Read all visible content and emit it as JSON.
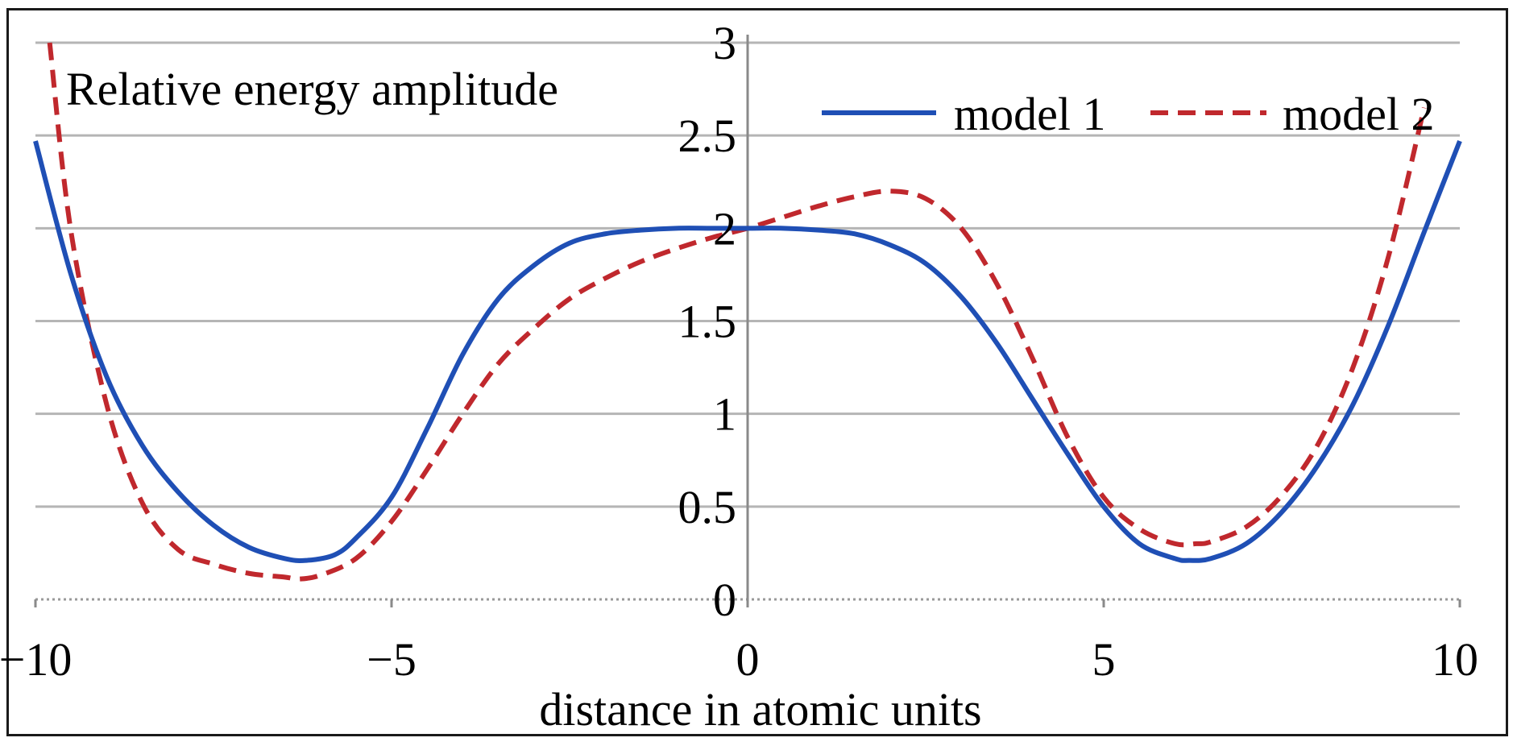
{
  "chart_data": {
    "type": "line",
    "title": "Relative energy amplitude",
    "xlabel": "distance in atomic units",
    "ylabel": "",
    "xlim": [
      -10,
      10
    ],
    "ylim": [
      0,
      3
    ],
    "x_ticks": [
      -10,
      -5,
      0,
      5,
      10
    ],
    "x_tick_labels": [
      "−10",
      "−5",
      "0",
      "5",
      "10"
    ],
    "y_ticks": [
      0,
      0.5,
      1,
      1.5,
      2,
      2.5,
      3
    ],
    "y_tick_labels": [
      "0",
      "0.5",
      "1",
      "1.5",
      "2",
      "2.5",
      "3"
    ],
    "grid": "horizontal",
    "legend_position": "top-right",
    "series": [
      {
        "name": "model 1",
        "color": "#1f4fb5",
        "style": "solid",
        "x": [
          -10,
          -9.5,
          -9,
          -8.5,
          -8,
          -7.5,
          -7,
          -6.5,
          -6.2,
          -5.8,
          -5.5,
          -5,
          -4.5,
          -4,
          -3.5,
          -3,
          -2.5,
          -2,
          -1.5,
          -1,
          -0.5,
          0,
          0.5,
          1,
          1.5,
          2,
          2.5,
          3,
          3.5,
          4,
          4.5,
          5,
          5.5,
          6,
          6.2,
          6.5,
          7,
          7.5,
          8,
          8.5,
          9,
          9.5,
          10
        ],
        "y": [
          2.47,
          1.75,
          1.2,
          0.83,
          0.58,
          0.4,
          0.28,
          0.22,
          0.21,
          0.24,
          0.33,
          0.55,
          0.92,
          1.32,
          1.62,
          1.8,
          1.92,
          1.97,
          1.99,
          2.0,
          2.0,
          2.0,
          2.0,
          1.99,
          1.97,
          1.91,
          1.81,
          1.63,
          1.38,
          1.08,
          0.78,
          0.5,
          0.3,
          0.22,
          0.21,
          0.22,
          0.3,
          0.47,
          0.72,
          1.05,
          1.48,
          1.98,
          2.47
        ]
      },
      {
        "name": "model 2",
        "color": "#c0282d",
        "style": "dashed",
        "x": [
          -9.8,
          -9.5,
          -9,
          -8.5,
          -8,
          -7.5,
          -7,
          -6.5,
          -6.3,
          -6,
          -5.5,
          -5,
          -4.5,
          -4,
          -3.5,
          -3,
          -2.5,
          -2,
          -1.5,
          -1,
          -0.5,
          0,
          0.5,
          1,
          1.5,
          2,
          2.5,
          3,
          3.5,
          4,
          4.5,
          5,
          5.5,
          6,
          6.3,
          6.5,
          7,
          7.5,
          8,
          8.5,
          9,
          9.5
        ],
        "y": [
          3.0,
          1.98,
          1.05,
          0.52,
          0.27,
          0.19,
          0.14,
          0.12,
          0.11,
          0.13,
          0.22,
          0.42,
          0.7,
          1.0,
          1.27,
          1.46,
          1.62,
          1.73,
          1.82,
          1.89,
          1.95,
          2.0,
          2.06,
          2.12,
          2.17,
          2.2,
          2.16,
          2.0,
          1.7,
          1.3,
          0.87,
          0.55,
          0.38,
          0.3,
          0.3,
          0.31,
          0.39,
          0.56,
          0.83,
          1.25,
          1.85,
          2.65
        ]
      }
    ]
  }
}
